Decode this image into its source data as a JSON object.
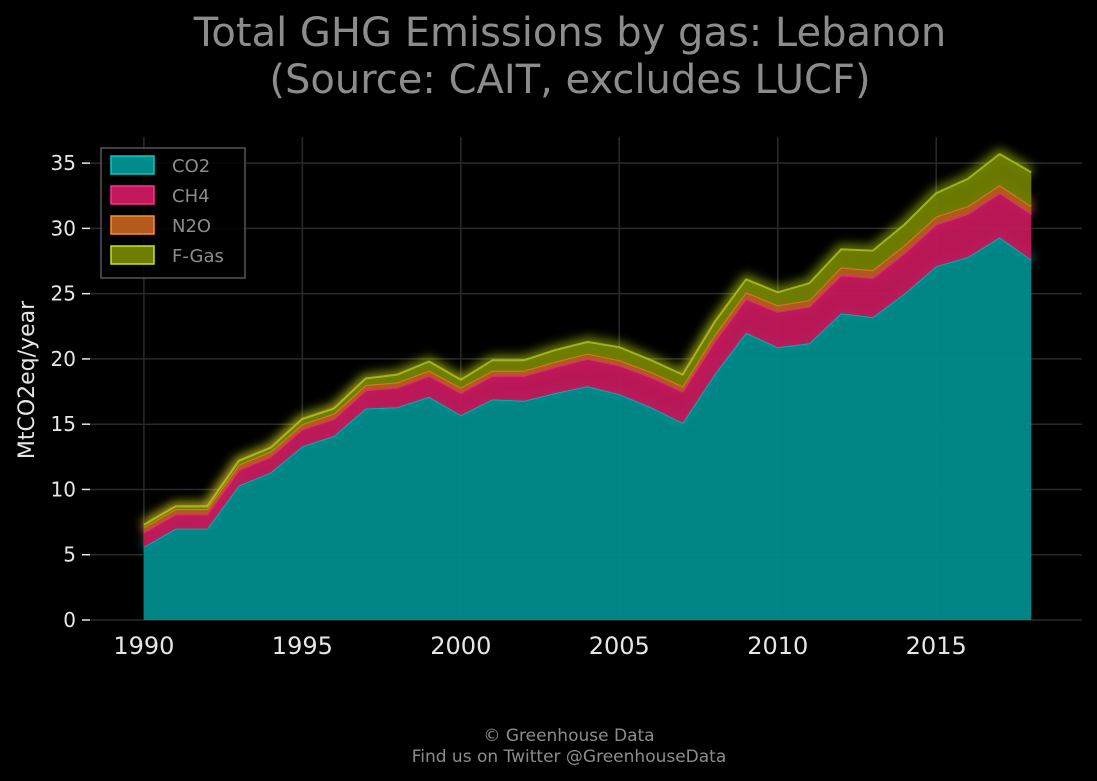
{
  "chart_data": {
    "type": "area",
    "stacked": true,
    "title": "Total GHG Emissions by gas: Lebanon",
    "subtitle": "(Source: CAIT, excludes LUCF)",
    "xlabel": "",
    "ylabel": "MtCO2eq/year",
    "x": [
      1990,
      1991,
      1992,
      1993,
      1994,
      1995,
      1996,
      1997,
      1998,
      1999,
      2000,
      2001,
      2002,
      2003,
      2004,
      2005,
      2006,
      2007,
      2008,
      2009,
      2010,
      2011,
      2012,
      2013,
      2014,
      2015,
      2016,
      2017,
      2018
    ],
    "xlim": [
      1988.3,
      2019.6
    ],
    "ylim": [
      0,
      37
    ],
    "xticks": [
      "1990",
      "1995",
      "2000",
      "2005",
      "2010",
      "2015"
    ],
    "yticks": [
      "0",
      "5",
      "10",
      "15",
      "20",
      "25",
      "30",
      "35"
    ],
    "grid": true,
    "legend_position": "top-left",
    "series": [
      {
        "name": "CO2",
        "color": "#008b8b",
        "edge": "#00cccc",
        "values": [
          5.6,
          7.0,
          7.0,
          10.3,
          11.3,
          13.3,
          14.1,
          16.2,
          16.3,
          17.1,
          15.7,
          16.9,
          16.8,
          17.4,
          17.9,
          17.3,
          16.3,
          15.1,
          18.8,
          22.0,
          20.9,
          21.2,
          23.5,
          23.2,
          25.0,
          27.1,
          27.8,
          29.3,
          27.6
        ]
      },
      {
        "name": "CH4",
        "color": "#c2185b",
        "edge": "#ff2d95",
        "values": [
          1.1,
          1.1,
          1.1,
          1.2,
          1.2,
          1.3,
          1.3,
          1.4,
          1.5,
          1.6,
          1.7,
          1.8,
          1.9,
          2.0,
          2.1,
          2.2,
          2.3,
          2.4,
          2.5,
          2.6,
          2.7,
          2.8,
          2.9,
          3.0,
          3.1,
          3.2,
          3.3,
          3.4,
          3.5
        ]
      },
      {
        "name": "N2O",
        "color": "#b35a1f",
        "edge": "#ff8c26",
        "values": [
          0.4,
          0.4,
          0.4,
          0.4,
          0.4,
          0.4,
          0.4,
          0.4,
          0.4,
          0.4,
          0.4,
          0.4,
          0.4,
          0.4,
          0.4,
          0.4,
          0.4,
          0.4,
          0.5,
          0.5,
          0.5,
          0.5,
          0.6,
          0.6,
          0.6,
          0.6,
          0.6,
          0.6,
          0.6
        ]
      },
      {
        "name": "F-Gas",
        "color": "#6f7d00",
        "edge": "#c8e61a",
        "values": [
          0.2,
          0.2,
          0.2,
          0.3,
          0.3,
          0.4,
          0.4,
          0.5,
          0.6,
          0.7,
          0.6,
          0.8,
          0.8,
          0.9,
          0.9,
          1.0,
          0.9,
          0.9,
          1.0,
          1.0,
          1.0,
          1.3,
          1.4,
          1.5,
          1.6,
          1.8,
          2.1,
          2.4,
          2.6
        ]
      }
    ]
  },
  "footer": {
    "copyright": "© Greenhouse Data",
    "twitter": "Find us on Twitter @GreenhouseData"
  }
}
